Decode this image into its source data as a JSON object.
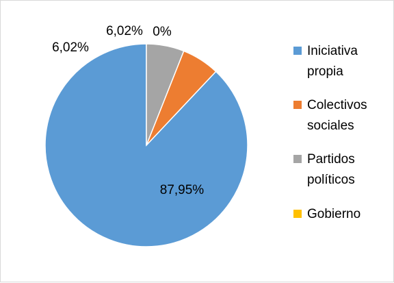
{
  "chart_data": {
    "type": "pie",
    "title": "",
    "categories": [
      "Iniciativa propia",
      "Colectivos sociales",
      "Partidos políticos",
      "Gobierno"
    ],
    "legend_lines": [
      [
        "Iniciativa",
        "propia"
      ],
      [
        "Colectivos",
        "sociales"
      ],
      [
        "Partidos",
        "políticos"
      ],
      [
        "Gobierno"
      ]
    ],
    "values": [
      87.95,
      6.02,
      6.02,
      0
    ],
    "data_labels": [
      "87,95%",
      "6,02%",
      "6,02%",
      "0%"
    ],
    "colors": [
      "#5b9bd5",
      "#ed7d31",
      "#a5a5a5",
      "#ffc000"
    ],
    "legend_position": "right",
    "start_angle": "top, clockwise"
  }
}
